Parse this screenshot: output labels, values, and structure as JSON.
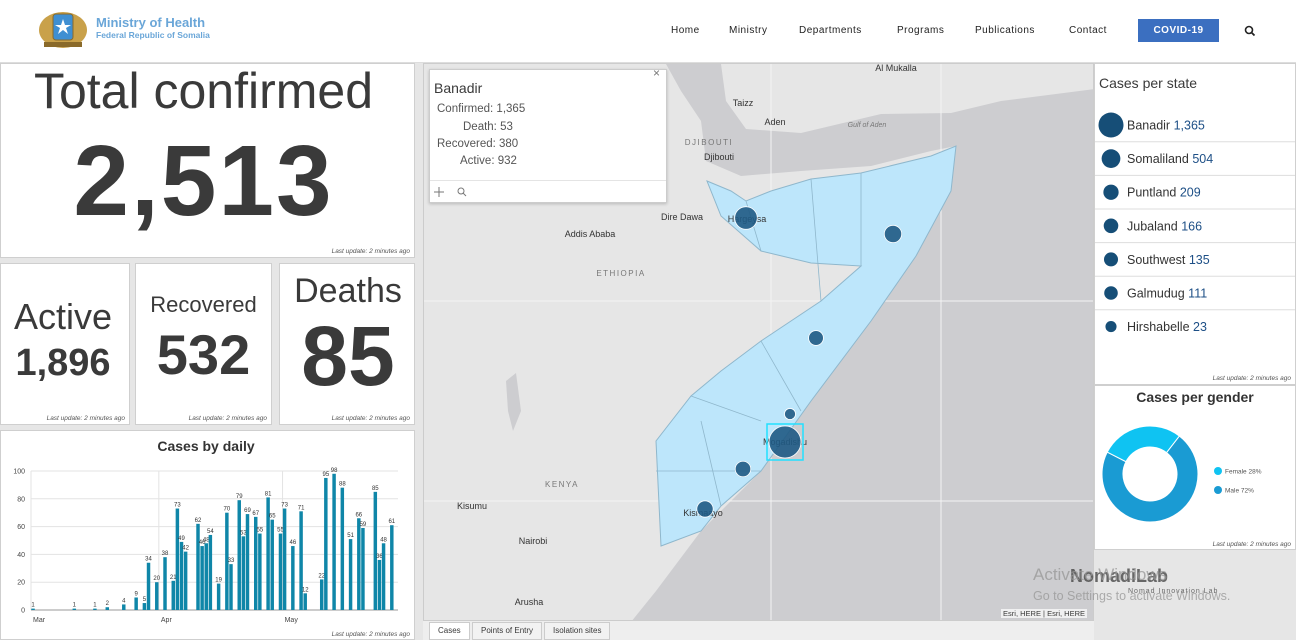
{
  "header": {
    "title": "Ministry of Health",
    "subtitle": "Federal Republic of Somalia",
    "nav": [
      "Home",
      "Ministry",
      "Departments",
      "Programs",
      "Publications",
      "Contact"
    ],
    "button": "COVID-19"
  },
  "total": {
    "label": "Total confirmed",
    "value": "2,513",
    "updated": "Last update: 2 minutes ago"
  },
  "active": {
    "label": "Active",
    "value": "1,896",
    "updated": "Last update: 2 minutes ago"
  },
  "recovered": {
    "label": "Recovered",
    "value": "532",
    "updated": "Last update: 2 minutes ago"
  },
  "deaths": {
    "label": "Deaths",
    "value": "85",
    "updated": "Last update: 2 minutes ago"
  },
  "popup": {
    "title": "Banadir",
    "rows": [
      "Confirmed: 1,365",
      "Death: 53",
      "Recovered: 380",
      "Active: 932"
    ]
  },
  "map": {
    "labels": [
      "Al Mukalla",
      "Taizz",
      "Aden",
      "Gulf of Aden",
      "DJIBOUTI",
      "Djibouti",
      "Dire Dawa",
      "Addis Ababa",
      "ETHIOPIA",
      "Hargeysa",
      "Mogadishu",
      "KENYA",
      "Kisumu",
      "Nairobi",
      "Kismaayo",
      "Arusha"
    ],
    "attribution": "Esri, HERE | Esri, HERE",
    "tabs": [
      "Cases",
      "Points of Entry",
      "Isolation sites"
    ]
  },
  "states": {
    "title": "Cases per state",
    "updated": "Last update: 2 minutes ago",
    "items": [
      {
        "name": "Banadir",
        "value": {
          "value": 1365,
          "label": "1,365"
        }
      },
      {
        "name": "Somaliland",
        "value": 504
      },
      {
        "name": "Puntland",
        "value": 209
      },
      {
        "name": "Jubaland",
        "value": 166
      },
      {
        "name": "Southwest",
        "value": 135
      },
      {
        "name": "Galmudug",
        "value": 111
      },
      {
        "name": "Hirshabelle",
        "value": 23
      }
    ]
  },
  "chart_data": [
    {
      "type": "bar",
      "title": "Cases by daily",
      "color": "#0f86a8",
      "grid": true,
      "ylim": [
        0,
        100
      ],
      "yticks": [
        0,
        20,
        40,
        60,
        80,
        100
      ],
      "categories": [
        "Mar",
        null,
        null,
        null,
        null,
        null,
        null,
        null,
        null,
        null,
        null,
        null,
        null,
        null,
        null,
        null,
        null,
        null,
        null,
        null,
        null,
        null,
        null,
        null,
        null,
        null,
        null,
        null,
        null,
        null,
        null,
        "Apr",
        null,
        null,
        null,
        null,
        null,
        null,
        null,
        null,
        null,
        null,
        null,
        null,
        null,
        null,
        null,
        null,
        null,
        null,
        null,
        null,
        null,
        null,
        null,
        null,
        null,
        null,
        null,
        null,
        null,
        "May",
        null,
        null,
        null,
        null,
        null,
        null,
        null,
        null,
        null,
        null,
        null,
        null,
        null,
        null,
        null,
        null,
        null,
        null,
        null,
        null,
        null,
        null,
        null,
        null,
        null,
        null,
        null
      ],
      "values": [
        1,
        null,
        null,
        null,
        null,
        null,
        null,
        null,
        null,
        null,
        1,
        null,
        null,
        null,
        null,
        1,
        null,
        null,
        2,
        null,
        null,
        null,
        4,
        null,
        null,
        9,
        null,
        5,
        34,
        null,
        20,
        null,
        38,
        null,
        21,
        73,
        49,
        42,
        null,
        null,
        62,
        46,
        48,
        54,
        null,
        19,
        null,
        70,
        33,
        null,
        79,
        53,
        69,
        null,
        67,
        55,
        null,
        81,
        65,
        null,
        55,
        73,
        null,
        46,
        null,
        71,
        12,
        null,
        null,
        null,
        22,
        95,
        null,
        98,
        null,
        88,
        null,
        51,
        null,
        66,
        59,
        null,
        null,
        85,
        36,
        48,
        null,
        61,
        null
      ],
      "updated": "Last update: 2 minutes ago"
    },
    {
      "type": "donut",
      "title": "Cases per gender",
      "categories": [
        "Female",
        "Male"
      ],
      "values": [
        28,
        72
      ],
      "value_labels": [
        "28%",
        "72%"
      ],
      "colors": [
        "#0fc3f2",
        "#1a9bd3"
      ],
      "updated": "Last update: 2 minutes ago"
    }
  ],
  "watermark": {
    "line1": "Activate Windows",
    "line2": "Go to Settings to activate Windows.",
    "brand": "NomadiLab",
    "brand_sub": "Nomad Innovation Lab"
  }
}
